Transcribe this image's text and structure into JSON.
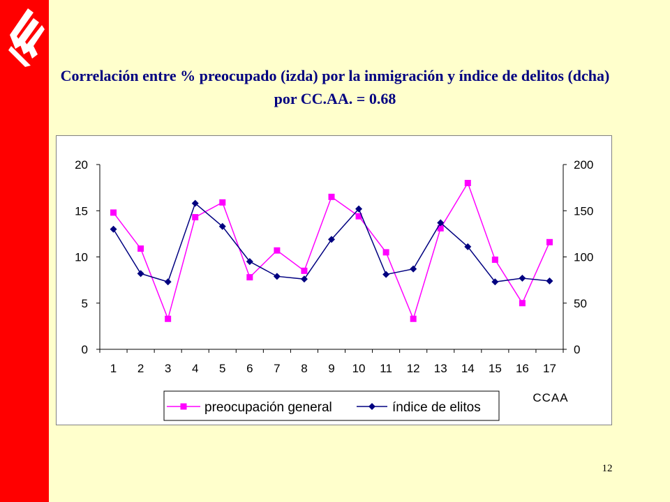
{
  "slide": {
    "title": "Correlación entre % preocupado (izda) por la inmigración y índice de delitos (dcha) por CC.AA. = 0.68",
    "page_number": "12"
  },
  "colors": {
    "sidebar": "#FF0000",
    "background": "#FFFFCC",
    "title": "#000080",
    "series_magenta": "#FF00FF",
    "series_navy": "#000080"
  },
  "chart_data": {
    "type": "line",
    "title": "Correlación entre % preocupado (izda) por la inmigración y índice de delitos (dcha) por CC.AA. = 0.68",
    "xlabel": "CCAA",
    "ylabel": "",
    "categories": [
      "1",
      "2",
      "3",
      "4",
      "5",
      "6",
      "7",
      "8",
      "9",
      "10",
      "11",
      "12",
      "13",
      "14",
      "15",
      "16",
      "17"
    ],
    "ylim": [
      0,
      20
    ],
    "y2lim": [
      0,
      200
    ],
    "yticks": [
      "0",
      "5",
      "10",
      "15",
      "20"
    ],
    "y2ticks": [
      "0",
      "50",
      "100",
      "150",
      "200"
    ],
    "grid": false,
    "legend_position": "bottom",
    "series": [
      {
        "name": "preocupación general",
        "axis": "left",
        "color": "#FF00FF",
        "marker": "square",
        "values": [
          14.8,
          10.9,
          3.3,
          14.3,
          15.9,
          7.8,
          10.7,
          8.5,
          16.5,
          14.4,
          10.5,
          3.3,
          13.1,
          18.0,
          9.7,
          5.0,
          11.6
        ]
      },
      {
        "name": "índice de elitos",
        "axis": "right",
        "color": "#000080",
        "marker": "diamond",
        "values": [
          130,
          82,
          73,
          158,
          133,
          95,
          79,
          76,
          119,
          152,
          81,
          87,
          137,
          111,
          73,
          77,
          74
        ]
      }
    ]
  }
}
